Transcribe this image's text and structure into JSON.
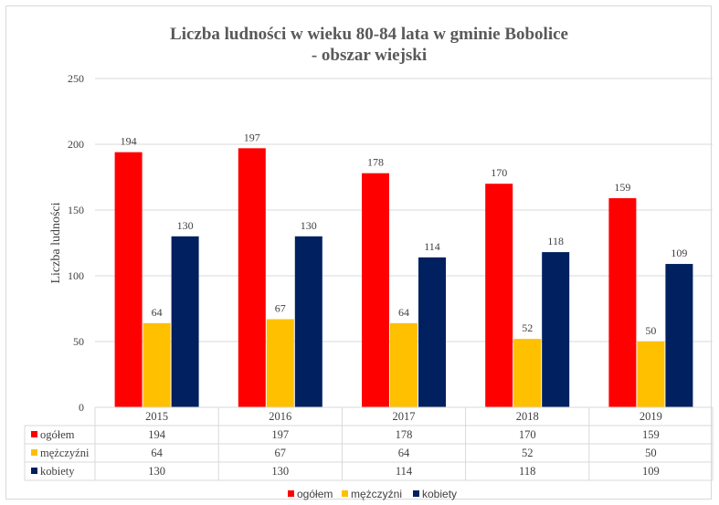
{
  "chart_data": {
    "type": "bar",
    "title": "Liczba ludności w wieku 80-84 lata w gminie Bobolice",
    "subtitle": "- obszar wiejski",
    "ylabel": "Liczba ludności",
    "ylim": [
      0,
      250
    ],
    "yticks": [
      0,
      50,
      100,
      150,
      200,
      250
    ],
    "categories": [
      "2015",
      "2016",
      "2017",
      "2018",
      "2019"
    ],
    "series": [
      {
        "name": "ogółem",
        "color": "#ff0000",
        "values": [
          194,
          197,
          178,
          170,
          159
        ]
      },
      {
        "name": "mężczyźni",
        "color": "#ffc000",
        "values": [
          64,
          67,
          64,
          52,
          50
        ]
      },
      {
        "name": "kobiety",
        "color": "#002060",
        "values": [
          130,
          130,
          114,
          118,
          109
        ]
      }
    ],
    "grid": "horizontal",
    "data_table": true,
    "legend_position": "bottom"
  }
}
